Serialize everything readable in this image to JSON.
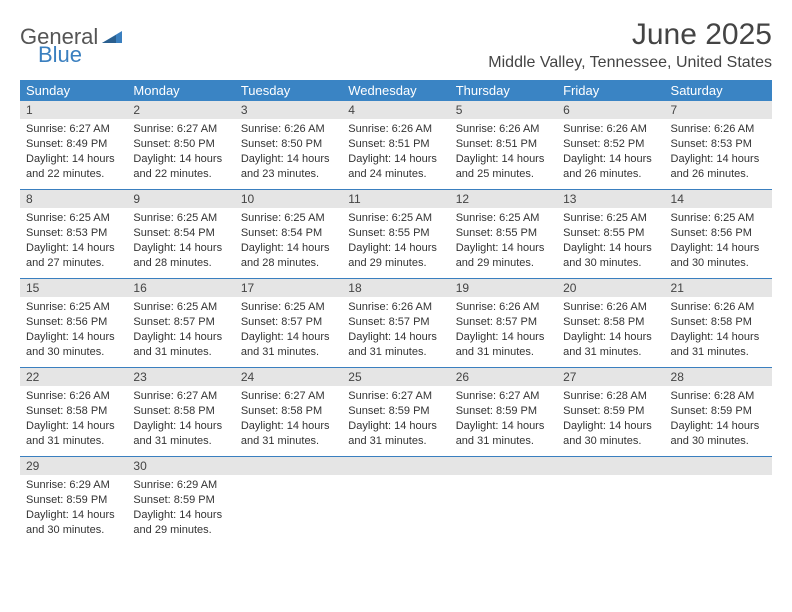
{
  "logo": {
    "text1": "General",
    "text2": "Blue"
  },
  "title": "June 2025",
  "location": "Middle Valley, Tennessee, United States",
  "colors": {
    "header_bg": "#3a84c4",
    "header_text": "#ffffff",
    "daynum_bg": "#e5e5e5",
    "border": "#3a7fbf",
    "body_text": "#333333",
    "logo_gray": "#555555",
    "logo_blue": "#3a7fbf"
  },
  "dayHeaders": [
    "Sunday",
    "Monday",
    "Tuesday",
    "Wednesday",
    "Thursday",
    "Friday",
    "Saturday"
  ],
  "weeks": [
    [
      {
        "n": "1",
        "sr": "Sunrise: 6:27 AM",
        "ss": "Sunset: 8:49 PM",
        "d1": "Daylight: 14 hours",
        "d2": "and 22 minutes."
      },
      {
        "n": "2",
        "sr": "Sunrise: 6:27 AM",
        "ss": "Sunset: 8:50 PM",
        "d1": "Daylight: 14 hours",
        "d2": "and 22 minutes."
      },
      {
        "n": "3",
        "sr": "Sunrise: 6:26 AM",
        "ss": "Sunset: 8:50 PM",
        "d1": "Daylight: 14 hours",
        "d2": "and 23 minutes."
      },
      {
        "n": "4",
        "sr": "Sunrise: 6:26 AM",
        "ss": "Sunset: 8:51 PM",
        "d1": "Daylight: 14 hours",
        "d2": "and 24 minutes."
      },
      {
        "n": "5",
        "sr": "Sunrise: 6:26 AM",
        "ss": "Sunset: 8:51 PM",
        "d1": "Daylight: 14 hours",
        "d2": "and 25 minutes."
      },
      {
        "n": "6",
        "sr": "Sunrise: 6:26 AM",
        "ss": "Sunset: 8:52 PM",
        "d1": "Daylight: 14 hours",
        "d2": "and 26 minutes."
      },
      {
        "n": "7",
        "sr": "Sunrise: 6:26 AM",
        "ss": "Sunset: 8:53 PM",
        "d1": "Daylight: 14 hours",
        "d2": "and 26 minutes."
      }
    ],
    [
      {
        "n": "8",
        "sr": "Sunrise: 6:25 AM",
        "ss": "Sunset: 8:53 PM",
        "d1": "Daylight: 14 hours",
        "d2": "and 27 minutes."
      },
      {
        "n": "9",
        "sr": "Sunrise: 6:25 AM",
        "ss": "Sunset: 8:54 PM",
        "d1": "Daylight: 14 hours",
        "d2": "and 28 minutes."
      },
      {
        "n": "10",
        "sr": "Sunrise: 6:25 AM",
        "ss": "Sunset: 8:54 PM",
        "d1": "Daylight: 14 hours",
        "d2": "and 28 minutes."
      },
      {
        "n": "11",
        "sr": "Sunrise: 6:25 AM",
        "ss": "Sunset: 8:55 PM",
        "d1": "Daylight: 14 hours",
        "d2": "and 29 minutes."
      },
      {
        "n": "12",
        "sr": "Sunrise: 6:25 AM",
        "ss": "Sunset: 8:55 PM",
        "d1": "Daylight: 14 hours",
        "d2": "and 29 minutes."
      },
      {
        "n": "13",
        "sr": "Sunrise: 6:25 AM",
        "ss": "Sunset: 8:55 PM",
        "d1": "Daylight: 14 hours",
        "d2": "and 30 minutes."
      },
      {
        "n": "14",
        "sr": "Sunrise: 6:25 AM",
        "ss": "Sunset: 8:56 PM",
        "d1": "Daylight: 14 hours",
        "d2": "and 30 minutes."
      }
    ],
    [
      {
        "n": "15",
        "sr": "Sunrise: 6:25 AM",
        "ss": "Sunset: 8:56 PM",
        "d1": "Daylight: 14 hours",
        "d2": "and 30 minutes."
      },
      {
        "n": "16",
        "sr": "Sunrise: 6:25 AM",
        "ss": "Sunset: 8:57 PM",
        "d1": "Daylight: 14 hours",
        "d2": "and 31 minutes."
      },
      {
        "n": "17",
        "sr": "Sunrise: 6:25 AM",
        "ss": "Sunset: 8:57 PM",
        "d1": "Daylight: 14 hours",
        "d2": "and 31 minutes."
      },
      {
        "n": "18",
        "sr": "Sunrise: 6:26 AM",
        "ss": "Sunset: 8:57 PM",
        "d1": "Daylight: 14 hours",
        "d2": "and 31 minutes."
      },
      {
        "n": "19",
        "sr": "Sunrise: 6:26 AM",
        "ss": "Sunset: 8:57 PM",
        "d1": "Daylight: 14 hours",
        "d2": "and 31 minutes."
      },
      {
        "n": "20",
        "sr": "Sunrise: 6:26 AM",
        "ss": "Sunset: 8:58 PM",
        "d1": "Daylight: 14 hours",
        "d2": "and 31 minutes."
      },
      {
        "n": "21",
        "sr": "Sunrise: 6:26 AM",
        "ss": "Sunset: 8:58 PM",
        "d1": "Daylight: 14 hours",
        "d2": "and 31 minutes."
      }
    ],
    [
      {
        "n": "22",
        "sr": "Sunrise: 6:26 AM",
        "ss": "Sunset: 8:58 PM",
        "d1": "Daylight: 14 hours",
        "d2": "and 31 minutes."
      },
      {
        "n": "23",
        "sr": "Sunrise: 6:27 AM",
        "ss": "Sunset: 8:58 PM",
        "d1": "Daylight: 14 hours",
        "d2": "and 31 minutes."
      },
      {
        "n": "24",
        "sr": "Sunrise: 6:27 AM",
        "ss": "Sunset: 8:58 PM",
        "d1": "Daylight: 14 hours",
        "d2": "and 31 minutes."
      },
      {
        "n": "25",
        "sr": "Sunrise: 6:27 AM",
        "ss": "Sunset: 8:59 PM",
        "d1": "Daylight: 14 hours",
        "d2": "and 31 minutes."
      },
      {
        "n": "26",
        "sr": "Sunrise: 6:27 AM",
        "ss": "Sunset: 8:59 PM",
        "d1": "Daylight: 14 hours",
        "d2": "and 31 minutes."
      },
      {
        "n": "27",
        "sr": "Sunrise: 6:28 AM",
        "ss": "Sunset: 8:59 PM",
        "d1": "Daylight: 14 hours",
        "d2": "and 30 minutes."
      },
      {
        "n": "28",
        "sr": "Sunrise: 6:28 AM",
        "ss": "Sunset: 8:59 PM",
        "d1": "Daylight: 14 hours",
        "d2": "and 30 minutes."
      }
    ],
    [
      {
        "n": "29",
        "sr": "Sunrise: 6:29 AM",
        "ss": "Sunset: 8:59 PM",
        "d1": "Daylight: 14 hours",
        "d2": "and 30 minutes."
      },
      {
        "n": "30",
        "sr": "Sunrise: 6:29 AM",
        "ss": "Sunset: 8:59 PM",
        "d1": "Daylight: 14 hours",
        "d2": "and 29 minutes."
      },
      {
        "empty": true
      },
      {
        "empty": true
      },
      {
        "empty": true
      },
      {
        "empty": true
      },
      {
        "empty": true
      }
    ]
  ]
}
